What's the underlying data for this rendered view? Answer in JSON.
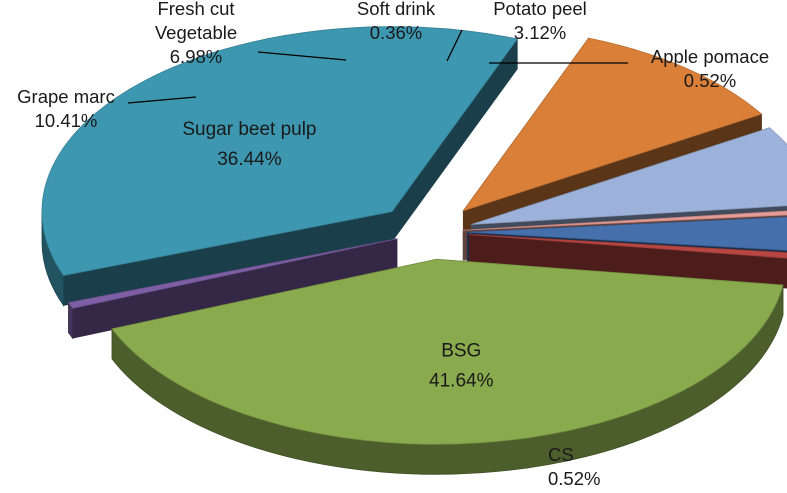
{
  "chart_data": {
    "type": "pie",
    "style": "3d-exploded",
    "title": "",
    "slices": [
      {
        "name": "BSG",
        "value": 41.64,
        "label": "41.64%",
        "color": "#8AAA4E"
      },
      {
        "name": "CS",
        "value": 0.52,
        "label": "0.52%",
        "color": "#7E5FA6"
      },
      {
        "name": "Sugar beet pulp",
        "value": 36.44,
        "label": "36.44%",
        "color": "#3E97B0"
      },
      {
        "name": "Grape marc",
        "value": 10.41,
        "label": "10.41%",
        "color": "#D97F38"
      },
      {
        "name": "Fresh cut Vegetable",
        "name_lines": [
          "Fresh cut",
          "Vegetable"
        ],
        "value": 6.98,
        "label": "6.98%",
        "color": "#9CB2DA"
      },
      {
        "name": "Soft drink",
        "value": 0.36,
        "label": "0.36%",
        "color": "#E59C96"
      },
      {
        "name": "Potato peel",
        "value": 3.12,
        "label": "3.12%",
        "color": "#4670AC"
      },
      {
        "name": "Apple pomace",
        "value": 0.52,
        "label": "0.52%",
        "color": "#B84642"
      }
    ],
    "legend": "none",
    "data_labels": "category-and-percent"
  }
}
